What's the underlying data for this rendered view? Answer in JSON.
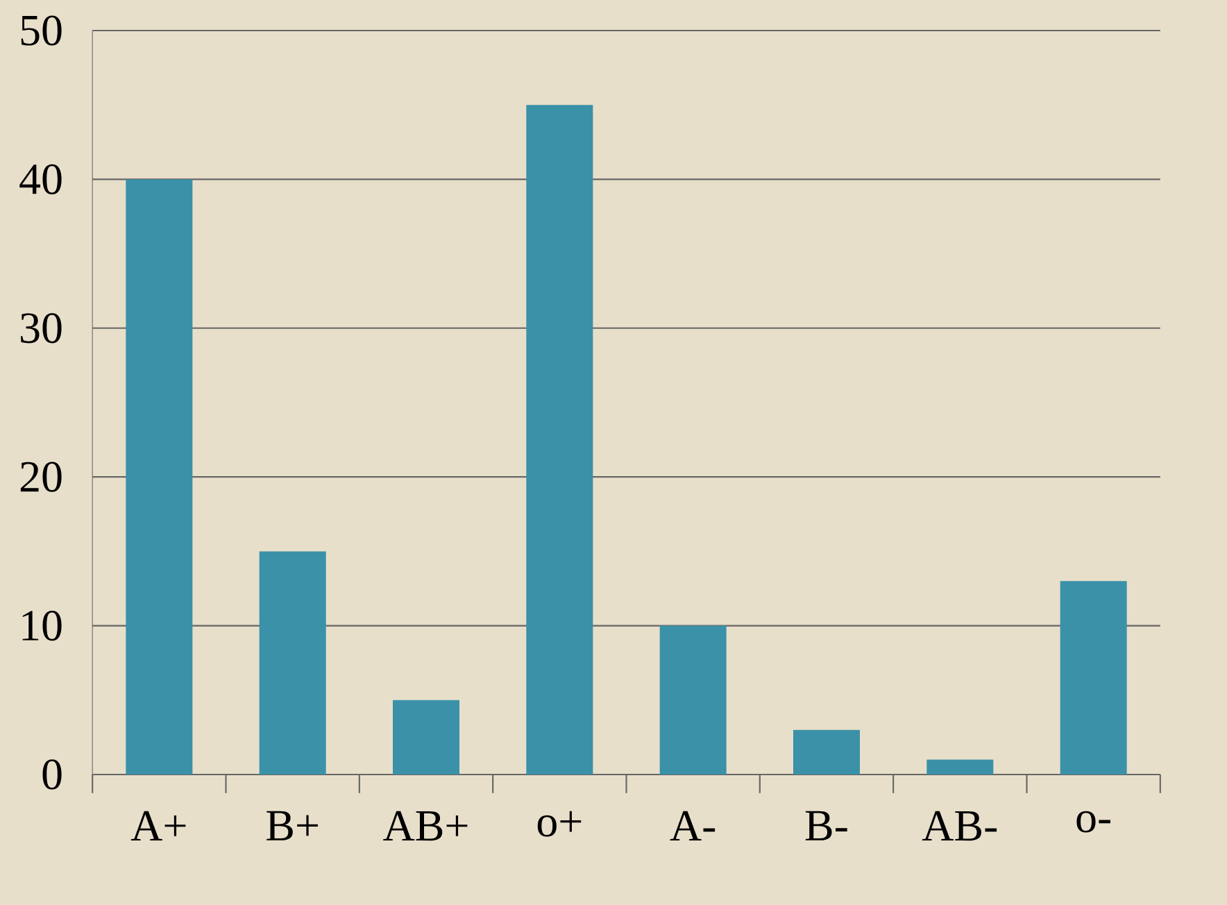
{
  "chart_data": {
    "type": "bar",
    "categories": [
      "A+",
      "B+",
      "AB+",
      "o+",
      "A-",
      "B-",
      "AB-",
      "o-"
    ],
    "values": [
      40,
      15,
      5,
      45,
      10,
      3,
      1,
      13
    ],
    "color": "#3a91a8",
    "ylim": [
      0,
      50
    ],
    "yticks": [
      0,
      10,
      20,
      30,
      40,
      50
    ],
    "grid": "y"
  }
}
